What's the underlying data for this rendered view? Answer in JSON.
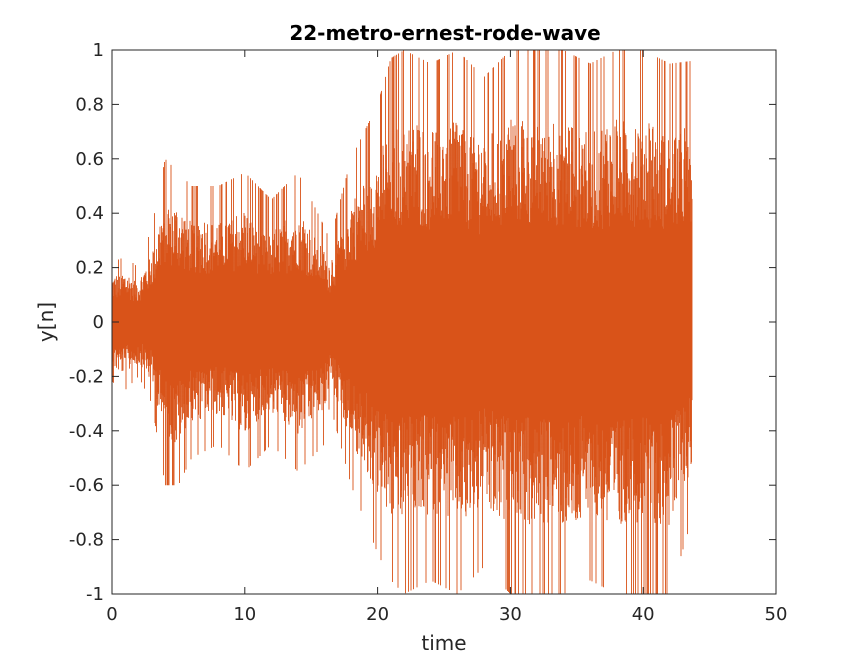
{
  "chart_data": {
    "type": "line",
    "title": "22-metro-ernest-rode-wave",
    "xlabel": "time",
    "ylabel": "y[n]",
    "xlim": [
      0,
      50
    ],
    "ylim": [
      -1,
      1
    ],
    "x_ticks": [
      0,
      10,
      20,
      30,
      40,
      50
    ],
    "x_tick_labels": [
      "0",
      "10",
      "20",
      "30",
      "40",
      "50"
    ],
    "y_ticks": [
      -1,
      -0.8,
      -0.6,
      -0.4,
      -0.2,
      0,
      0.2,
      0.4,
      0.6,
      0.8,
      1
    ],
    "y_tick_labels": [
      "-1",
      "-0.8",
      "-0.6",
      "-0.4",
      "-0.2",
      "0",
      "0.2",
      "0.4",
      "0.6",
      "0.8",
      "1"
    ],
    "grid": false,
    "series": [
      {
        "color": "#D95319",
        "signal_duration": 43.7,
        "envelope": {
          "time": [
            0,
            1,
            2,
            3,
            4,
            5,
            6,
            8,
            10,
            12,
            14,
            16,
            16.4,
            18,
            20,
            21,
            22,
            24,
            26,
            28,
            30,
            32,
            34,
            36,
            38,
            40,
            42,
            43.7
          ],
          "upper": [
            0.22,
            0.24,
            0.2,
            0.35,
            0.6,
            0.55,
            0.5,
            0.5,
            0.55,
            0.45,
            0.55,
            0.35,
            0.3,
            0.6,
            0.8,
            0.97,
            1.0,
            0.95,
            1.0,
            0.9,
            1.0,
            1.0,
            1.0,
            0.95,
            1.0,
            1.0,
            0.95,
            0.96
          ],
          "lower": [
            -0.22,
            -0.25,
            -0.2,
            -0.3,
            -0.6,
            -0.6,
            -0.5,
            -0.45,
            -0.55,
            -0.45,
            -0.55,
            -0.45,
            -0.3,
            -0.6,
            -0.85,
            -0.95,
            -1.0,
            -0.95,
            -1.0,
            -0.9,
            -1.0,
            -1.0,
            -1.0,
            -0.95,
            -1.0,
            -1.0,
            -1.0,
            -0.72
          ]
        }
      }
    ]
  }
}
